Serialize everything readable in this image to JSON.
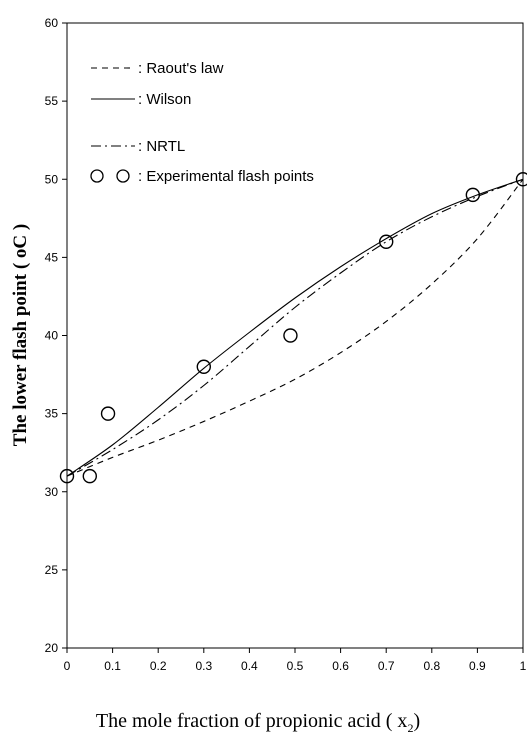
{
  "chart_data": {
    "type": "line",
    "xlabel": "The mole fraction of propionic acid ( x",
    "xlabel_subscript": "2",
    "xlabel_close": ")",
    "ylabel": "The lower flash point ( oC )",
    "xlim": [
      0,
      1
    ],
    "ylim": [
      20,
      60
    ],
    "x_ticks": [
      "0",
      "0.1",
      "0.2",
      "0.3",
      "0.4",
      "0.5",
      "0.6",
      "0.7",
      "0.8",
      "0.9",
      "1"
    ],
    "y_ticks": [
      "20",
      "25",
      "30",
      "35",
      "40",
      "45",
      "50",
      "55",
      "60"
    ],
    "grid": false,
    "legend_position": "top-left",
    "legend": [
      {
        "symbol": "- - -",
        "text": "Raout's law"
      },
      {
        "symbol": "——",
        "text": "Wilson"
      },
      {
        "symbol": "- · -",
        "text": "NRTL"
      },
      {
        "symbol": "O O",
        "text": "Experimental flash points"
      }
    ],
    "series": [
      {
        "name": "Raout's law",
        "style": "dashed",
        "x": [
          0,
          0.1,
          0.2,
          0.3,
          0.4,
          0.5,
          0.6,
          0.7,
          0.8,
          0.9,
          1.0
        ],
        "y": [
          31.0,
          32.2,
          33.3,
          34.5,
          35.8,
          37.2,
          38.9,
          40.9,
          43.3,
          46.2,
          50.0
        ]
      },
      {
        "name": "Wilson",
        "style": "solid",
        "x": [
          0,
          0.1,
          0.2,
          0.3,
          0.4,
          0.5,
          0.6,
          0.7,
          0.8,
          0.9,
          1.0
        ],
        "y": [
          31.0,
          33.0,
          35.4,
          37.9,
          40.2,
          42.4,
          44.4,
          46.2,
          47.8,
          49.0,
          50.0
        ]
      },
      {
        "name": "NRTL",
        "style": "dashdot",
        "x": [
          0,
          0.1,
          0.2,
          0.3,
          0.4,
          0.5,
          0.6,
          0.7,
          0.8,
          0.9,
          1.0
        ],
        "y": [
          31.0,
          32.7,
          34.6,
          36.8,
          39.3,
          41.8,
          44.0,
          46.0,
          47.6,
          48.9,
          50.0
        ]
      },
      {
        "name": "Experimental flash points",
        "style": "markers",
        "x": [
          0,
          0.05,
          0.09,
          0.3,
          0.49,
          0.7,
          0.89,
          1.0
        ],
        "y": [
          31,
          31,
          35,
          38,
          40,
          46,
          49,
          50
        ]
      }
    ]
  }
}
